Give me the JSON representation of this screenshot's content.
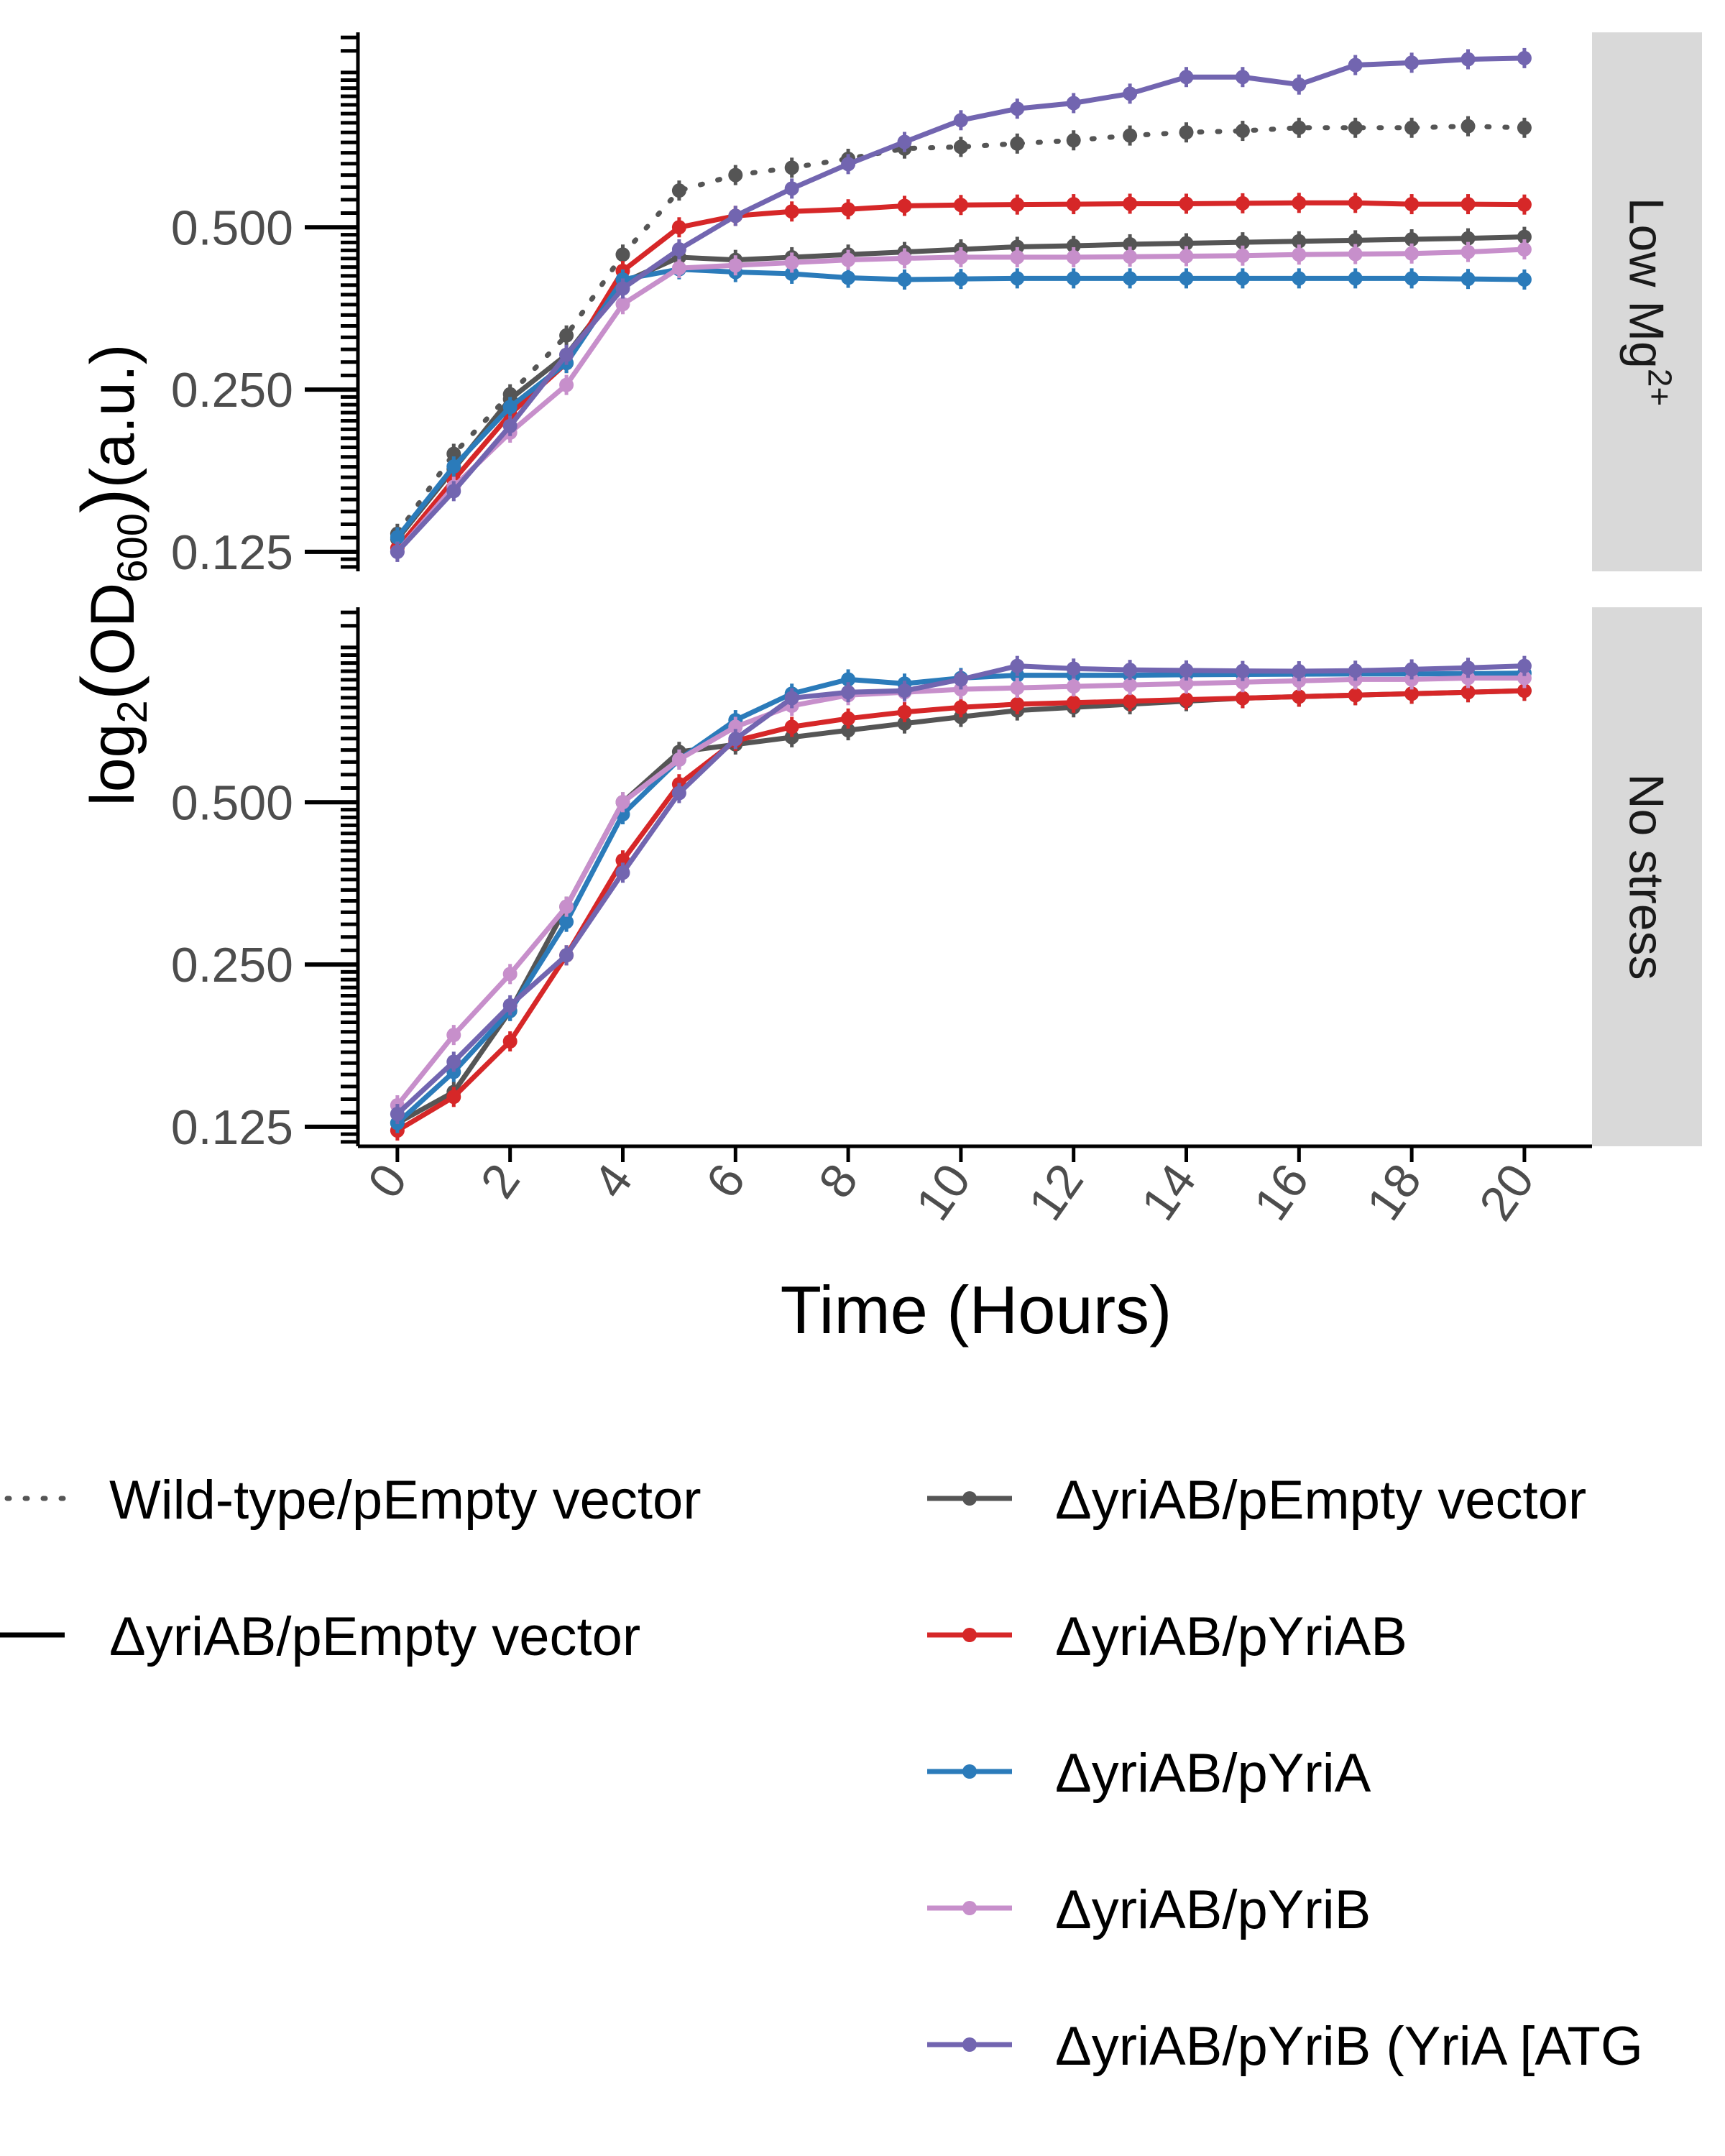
{
  "chart_data": {
    "type": "line",
    "xlabel": "Time (Hours)",
    "ylabel": {
      "prefix": "log",
      "base": "2",
      "open": "(",
      "od": "OD",
      "od_sub": "600",
      "close": ")",
      "unit": "(a.u.)"
    },
    "y_scale": "log2",
    "x_ticks": [
      0,
      2,
      4,
      6,
      8,
      10,
      12,
      14,
      16,
      18,
      20
    ],
    "y_ticks": [
      0.125,
      0.25,
      0.5
    ],
    "y_tick_labels": [
      "0.125",
      "0.250",
      "0.500"
    ],
    "xlim": [
      -0.7,
      21.2
    ],
    "ylim": [
      0.115,
      1.15
    ],
    "grid": false,
    "legend_position": "bottom",
    "colors": {
      "wildtype": "#555555",
      "empty": "#555555",
      "pYriAB": "#d62728",
      "pYriA": "#2b7bba",
      "pYriB": "#c78fcb",
      "pYriB_ATG": "#7265b0",
      "strip_bg": "#d9d9d9"
    },
    "x": [
      0,
      1,
      2,
      3,
      4,
      5,
      6,
      7,
      8,
      9,
      10,
      11,
      12,
      13,
      14,
      15,
      16,
      17,
      18,
      19,
      20
    ],
    "panels": [
      {
        "strip": {
          "main": "Low Mg",
          "sup": "2+"
        },
        "series": [
          {
            "key": "wildtype",
            "dash": "dotted",
            "values": [
              0.135,
              0.19,
              0.245,
              0.315,
              0.445,
              0.585,
              0.625,
              0.645,
              0.67,
              0.7,
              0.705,
              0.715,
              0.725,
              0.74,
              0.75,
              0.755,
              0.765,
              0.765,
              0.765,
              0.77,
              0.765
            ]
          },
          {
            "key": "empty",
            "dash": "solid",
            "values": [
              0.132,
              0.178,
              0.24,
              0.29,
              0.395,
              0.44,
              0.435,
              0.44,
              0.445,
              0.45,
              0.455,
              0.46,
              0.462,
              0.465,
              0.467,
              0.469,
              0.471,
              0.473,
              0.475,
              0.477,
              0.48
            ]
          },
          {
            "key": "pYriAB",
            "dash": "solid",
            "values": [
              0.127,
              0.17,
              0.225,
              0.28,
              0.415,
              0.5,
              0.525,
              0.535,
              0.54,
              0.548,
              0.55,
              0.551,
              0.552,
              0.553,
              0.553,
              0.554,
              0.555,
              0.555,
              0.552,
              0.552,
              0.551
            ]
          },
          {
            "key": "pYriA",
            "dash": "solid",
            "values": [
              0.133,
              0.18,
              0.232,
              0.28,
              0.4,
              0.418,
              0.413,
              0.41,
              0.403,
              0.4,
              0.401,
              0.402,
              0.402,
              0.402,
              0.402,
              0.402,
              0.402,
              0.402,
              0.402,
              0.401,
              0.4
            ]
          },
          {
            "key": "pYriB",
            "dash": "solid",
            "values": [
              0.125,
              0.165,
              0.208,
              0.255,
              0.36,
              0.42,
              0.425,
              0.43,
              0.435,
              0.438,
              0.44,
              0.44,
              0.44,
              0.441,
              0.442,
              0.443,
              0.445,
              0.446,
              0.447,
              0.45,
              0.455
            ]
          },
          {
            "key": "pYriB_ATG",
            "dash": "solid",
            "values": [
              0.125,
              0.162,
              0.214,
              0.29,
              0.385,
              0.455,
              0.525,
              0.59,
              0.655,
              0.72,
              0.79,
              0.83,
              0.85,
              0.885,
              0.95,
              0.95,
              0.92,
              1.0,
              1.01,
              1.025,
              1.03
            ]
          }
        ]
      },
      {
        "strip": {
          "main": "No stress",
          "sup": ""
        },
        "series": [
          {
            "key": "empty",
            "dash": "solid",
            "values": [
              0.127,
              0.145,
              0.205,
              0.32,
              0.5,
              0.62,
              0.64,
              0.66,
              0.68,
              0.7,
              0.72,
              0.74,
              0.75,
              0.76,
              0.77,
              0.78,
              0.785,
              0.79,
              0.795,
              0.8,
              0.805
            ]
          },
          {
            "key": "pYriAB",
            "dash": "solid",
            "values": [
              0.123,
              0.142,
              0.18,
              0.26,
              0.39,
              0.54,
              0.65,
              0.69,
              0.715,
              0.735,
              0.75,
              0.76,
              0.765,
              0.77,
              0.775,
              0.78,
              0.785,
              0.79,
              0.795,
              0.8,
              0.805
            ]
          },
          {
            "key": "pYriA",
            "dash": "solid",
            "values": [
              0.127,
              0.158,
              0.205,
              0.3,
              0.475,
              0.6,
              0.71,
              0.795,
              0.845,
              0.83,
              0.85,
              0.86,
              0.86,
              0.86,
              0.862,
              0.863,
              0.864,
              0.865,
              0.865,
              0.866,
              0.868
            ]
          },
          {
            "key": "pYriB",
            "dash": "solid",
            "values": [
              0.137,
              0.185,
              0.24,
              0.32,
              0.5,
              0.6,
              0.69,
              0.755,
              0.79,
              0.8,
              0.81,
              0.815,
              0.82,
              0.825,
              0.83,
              0.835,
              0.84,
              0.845,
              0.845,
              0.85,
              0.85
            ]
          },
          {
            "key": "pYriB_ATG",
            "dash": "solid",
            "values": [
              0.132,
              0.165,
              0.21,
              0.26,
              0.37,
              0.52,
              0.655,
              0.78,
              0.8,
              0.805,
              0.845,
              0.895,
              0.885,
              0.88,
              0.878,
              0.876,
              0.875,
              0.877,
              0.882,
              0.888,
              0.895
            ]
          }
        ]
      }
    ],
    "legend": {
      "linetype": [
        {
          "dash": "dotted",
          "label": "Wild-type/pEmpty vector"
        },
        {
          "dash": "solid",
          "label": "ΔyriAB/pEmpty vector"
        }
      ],
      "colour": [
        {
          "key": "empty",
          "label": "ΔyriAB/pEmpty vector"
        },
        {
          "key": "pYriAB",
          "label": "ΔyriAB/pYriAB"
        },
        {
          "key": "pYriA",
          "label": "ΔyriAB/pYriA"
        },
        {
          "key": "pYriB",
          "label": "ΔyriAB/pYriB"
        },
        {
          "key": "pYriB_ATG",
          "label": "ΔyriAB/pYriB (YriA [ATG"
        }
      ]
    }
  }
}
